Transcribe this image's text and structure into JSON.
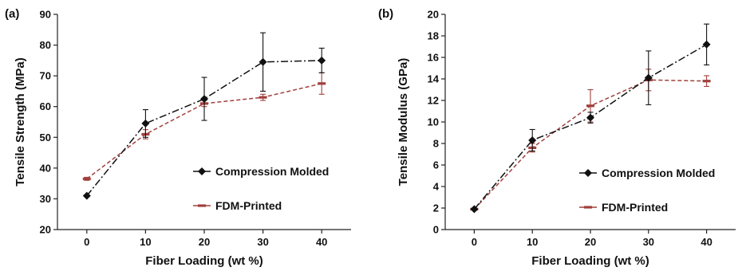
{
  "colors": {
    "compression": "#111111",
    "fdm": "#a0403c",
    "axis": "#222222"
  },
  "chart_data": [
    {
      "type": "line",
      "panel_label": "(a)",
      "xlabel": "Fiber Loading (wt %)",
      "ylabel": "Tensile Strength (MPa)",
      "x": [
        0,
        10,
        20,
        30,
        40
      ],
      "xticks": [
        0,
        10,
        20,
        30,
        40
      ],
      "xlim": [
        -5,
        45
      ],
      "ylim": [
        20,
        90
      ],
      "yticks": [
        20,
        30,
        40,
        50,
        60,
        70,
        80,
        90
      ],
      "grid": false,
      "legend": "center-right",
      "series": [
        {
          "name": "Compression Molded",
          "marker": "diamond",
          "line": "dash-dot",
          "values": [
            31,
            54.5,
            62.5,
            74.5,
            75
          ],
          "errors": [
            0,
            4.5,
            7,
            9.5,
            4
          ]
        },
        {
          "name": "FDM-Printed",
          "marker": "dash",
          "line": "dashed",
          "values": [
            36.5,
            51,
            61,
            63,
            67.5
          ],
          "errors": [
            0.5,
            1.5,
            1,
            1,
            3.5
          ]
        }
      ]
    },
    {
      "type": "line",
      "panel_label": "(b)",
      "xlabel": "Fiber Loading (wt %)",
      "ylabel": "Tensile Modulus (GPa)",
      "x": [
        0,
        10,
        20,
        30,
        40
      ],
      "xticks": [
        0,
        10,
        20,
        30,
        40
      ],
      "xlim": [
        -5,
        45
      ],
      "ylim": [
        0,
        20
      ],
      "yticks": [
        0,
        2,
        4,
        6,
        8,
        10,
        12,
        14,
        16,
        18,
        20
      ],
      "grid": false,
      "legend": "center-right",
      "series": [
        {
          "name": "Compression Molded",
          "marker": "diamond",
          "line": "dash-dot",
          "values": [
            1.9,
            8.3,
            10.4,
            14.1,
            17.2
          ],
          "errors": [
            0.1,
            1,
            0.5,
            2.5,
            1.9
          ]
        },
        {
          "name": "FDM-Printed",
          "marker": "dash",
          "line": "dashed",
          "values": [
            1.9,
            7.6,
            11.5,
            13.9,
            13.8
          ],
          "errors": [
            0.1,
            0.4,
            1.5,
            1,
            0.5
          ]
        }
      ]
    }
  ]
}
